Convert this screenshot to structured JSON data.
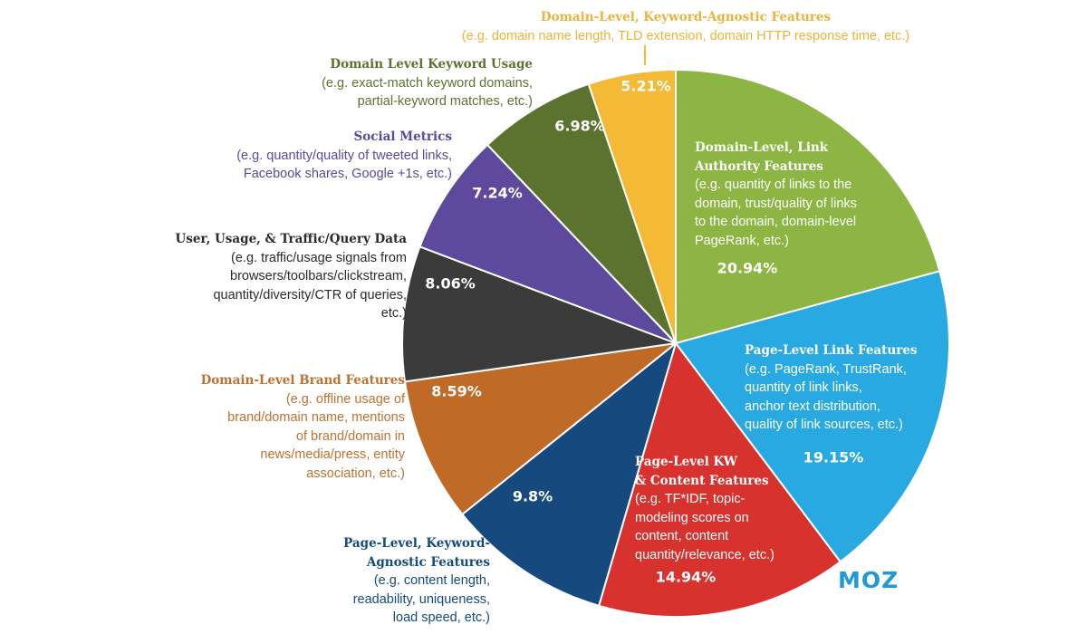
{
  "chart_data": {
    "type": "pie",
    "title": "",
    "start": "12 o'clock, clockwise",
    "slices": [
      {
        "name": "Domain-Level, Link Authority Features",
        "value": 20.94,
        "label": "20.94%",
        "color": "#8db543",
        "desc": [
          "(e.g. quantity of links to the",
          "domain, trust/quality of links",
          "to the domain, domain-level",
          "PageRank, etc.)"
        ],
        "title_lines": [
          "Domain-Level, Link",
          "Authority Features"
        ]
      },
      {
        "name": "Page-Level Link Features",
        "value": 19.15,
        "label": "19.15%",
        "color": "#29a9e1",
        "desc": [
          "(e.g. PageRank, TrustRank,",
          "quantity of link links,",
          "anchor text distribution,",
          "quality of link sources, etc.)"
        ],
        "title_lines": [
          "Page-Level Link Features"
        ]
      },
      {
        "name": "Page-Level KW & Content Features",
        "value": 14.94,
        "label": "14.94%",
        "color": "#d8322f",
        "desc": [
          "(e.g. TF*IDF, topic-",
          "modeling scores on",
          "content, content",
          "quantity/relevance, etc.)"
        ],
        "title_lines": [
          "Page-Level KW",
          "& Content Features"
        ]
      },
      {
        "name": "Page-Level, Keyword-Agnostic Features",
        "value": 9.8,
        "label": "9.8%",
        "color": "#164a7e",
        "desc": [
          "(e.g. content length,",
          "readability, uniqueness,",
          "load speed, etc.)"
        ],
        "title_lines": [
          "Page-Level, Keyword-",
          "Agnostic Features"
        ]
      },
      {
        "name": "Domain-Level Brand Features",
        "value": 8.59,
        "label": "8.59%",
        "color": "#c06a28",
        "desc": [
          "(e.g. offline usage of",
          "brand/domain name, mentions",
          "of brand/domain in",
          "news/media/press, entity",
          "association, etc.)"
        ],
        "title_lines": [
          "Domain-Level Brand Features"
        ]
      },
      {
        "name": "User, Usage, & Traffic/Query Data",
        "value": 8.06,
        "label": "8.06%",
        "color": "#3b3b3b",
        "desc": [
          "(e.g. traffic/usage signals from",
          "browsers/toolbars/clickstream,",
          "quantity/diversity/CTR of queries,",
          "etc.)"
        ],
        "title_lines": [
          "User, Usage, & Traffic/Query Data"
        ]
      },
      {
        "name": "Social Metrics",
        "value": 7.24,
        "label": "7.24%",
        "color": "#5d4a9d",
        "desc": [
          "(e.g. quantity/quality of tweeted links,",
          "Facebook shares, Google +1s, etc.)"
        ],
        "title_lines": [
          "Social Metrics"
        ]
      },
      {
        "name": "Domain Level Keyword Usage",
        "value": 6.98,
        "label": "6.98%",
        "color": "#5c722f",
        "desc": [
          "(e.g. exact-match keyword domains,",
          "partial-keyword matches, etc.)"
        ],
        "title_lines": [
          "Domain Level Keyword Usage"
        ]
      },
      {
        "name": "Domain-Level, Keyword-Agnostic Features",
        "value": 5.21,
        "label": "5.21%",
        "color": "#f4b935",
        "desc": [
          "(e.g. domain name length, TLD extension, domain HTTP response time, etc.)"
        ],
        "title_lines": [
          "Domain-Level, Keyword-Agnostic Features"
        ]
      }
    ],
    "label_colors": [
      "#ffffff",
      "#ffffff",
      "#ffffff",
      "#154a7e",
      "#c0702f",
      "#2b2b2b",
      "#5a4a9b",
      "#5c722f",
      "#eab43c"
    ]
  },
  "logo": "MOZ"
}
